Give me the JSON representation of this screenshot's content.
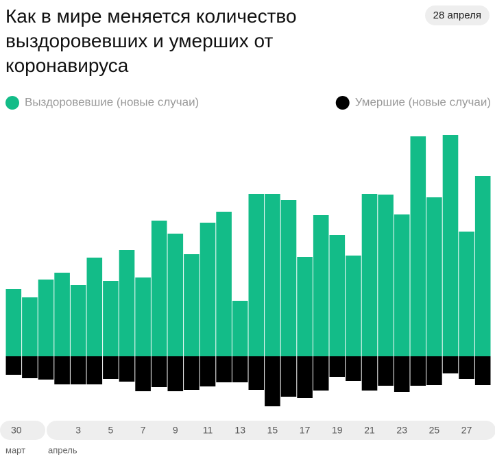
{
  "chart_data": {
    "type": "diverging_bar",
    "title": "Как в мире меняется количество выздоровевших и умерших от коронавируса",
    "date_label": "28 апреля",
    "categories": [
      "30",
      null,
      null,
      null,
      "3",
      null,
      "5",
      null,
      "7",
      null,
      "9",
      null,
      "11",
      null,
      "13",
      null,
      "15",
      null,
      "17",
      null,
      "19",
      null,
      "21",
      null,
      "23",
      null,
      "25",
      null,
      "27",
      null
    ],
    "month_labels": [
      "март",
      "апрель"
    ],
    "series": [
      {
        "name": "Выздоровевшие (новые случаи)",
        "color": "#13bc88",
        "direction": "up",
        "values": [
          98,
          86,
          112,
          122,
          104,
          144,
          110,
          155,
          115,
          198,
          179,
          149,
          195,
          211,
          81,
          237,
          237,
          228,
          145,
          206,
          177,
          147,
          237,
          236,
          207,
          321,
          232,
          323,
          182,
          263
        ]
      },
      {
        "name": "Умершие (новые случаи)",
        "color": "#000000",
        "direction": "down",
        "values": [
          27,
          32,
          34,
          41,
          41,
          41,
          33,
          37,
          51,
          45,
          51,
          49,
          44,
          38,
          38,
          49,
          73,
          59,
          61,
          50,
          30,
          36,
          50,
          43,
          52,
          43,
          42,
          25,
          33,
          42
        ]
      }
    ],
    "ylim": [
      -80,
      330
    ]
  }
}
